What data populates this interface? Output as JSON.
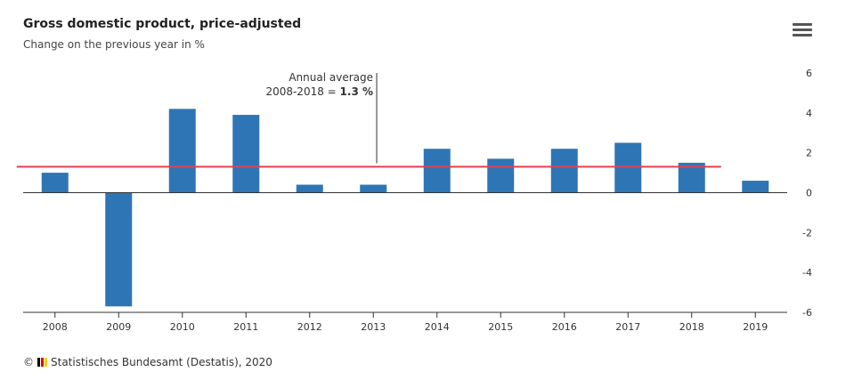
{
  "header": {
    "title": "Gross domestic product, price-adjusted",
    "subtitle": "Change on the previous year in %"
  },
  "menu": {
    "icon": "hamburger-menu-icon"
  },
  "chart_data": {
    "type": "bar",
    "title": "Gross domestic product, price-adjusted",
    "subtitle": "Change on the previous year in %",
    "categories": [
      "2008",
      "2009",
      "2010",
      "2011",
      "2012",
      "2013",
      "2014",
      "2015",
      "2016",
      "2017",
      "2018",
      "2019"
    ],
    "values": [
      1.0,
      -5.7,
      4.2,
      3.9,
      0.4,
      0.4,
      2.2,
      1.7,
      2.2,
      2.5,
      1.5,
      0.6
    ],
    "y_ticks": [
      "6",
      "4",
      "2",
      "0",
      "-2",
      "-4",
      "-6"
    ],
    "ylim": [
      -6,
      6
    ],
    "y_axis_position": "right",
    "bar_color": "#2e75b6",
    "average_line": {
      "value": 1.3,
      "from": "2008",
      "to": "2018",
      "color": "#e0424f",
      "label_line1": "Annual average",
      "label_line2_prefix": "2008-2018 = ",
      "label_line2_value": "1.3 %"
    },
    "grid": false
  },
  "credit": {
    "symbol": "©",
    "text": "Statistisches Bundesamt (Destatis), 2020",
    "flag_colors": [
      "#000000",
      "#dd0000",
      "#ffce00"
    ]
  }
}
